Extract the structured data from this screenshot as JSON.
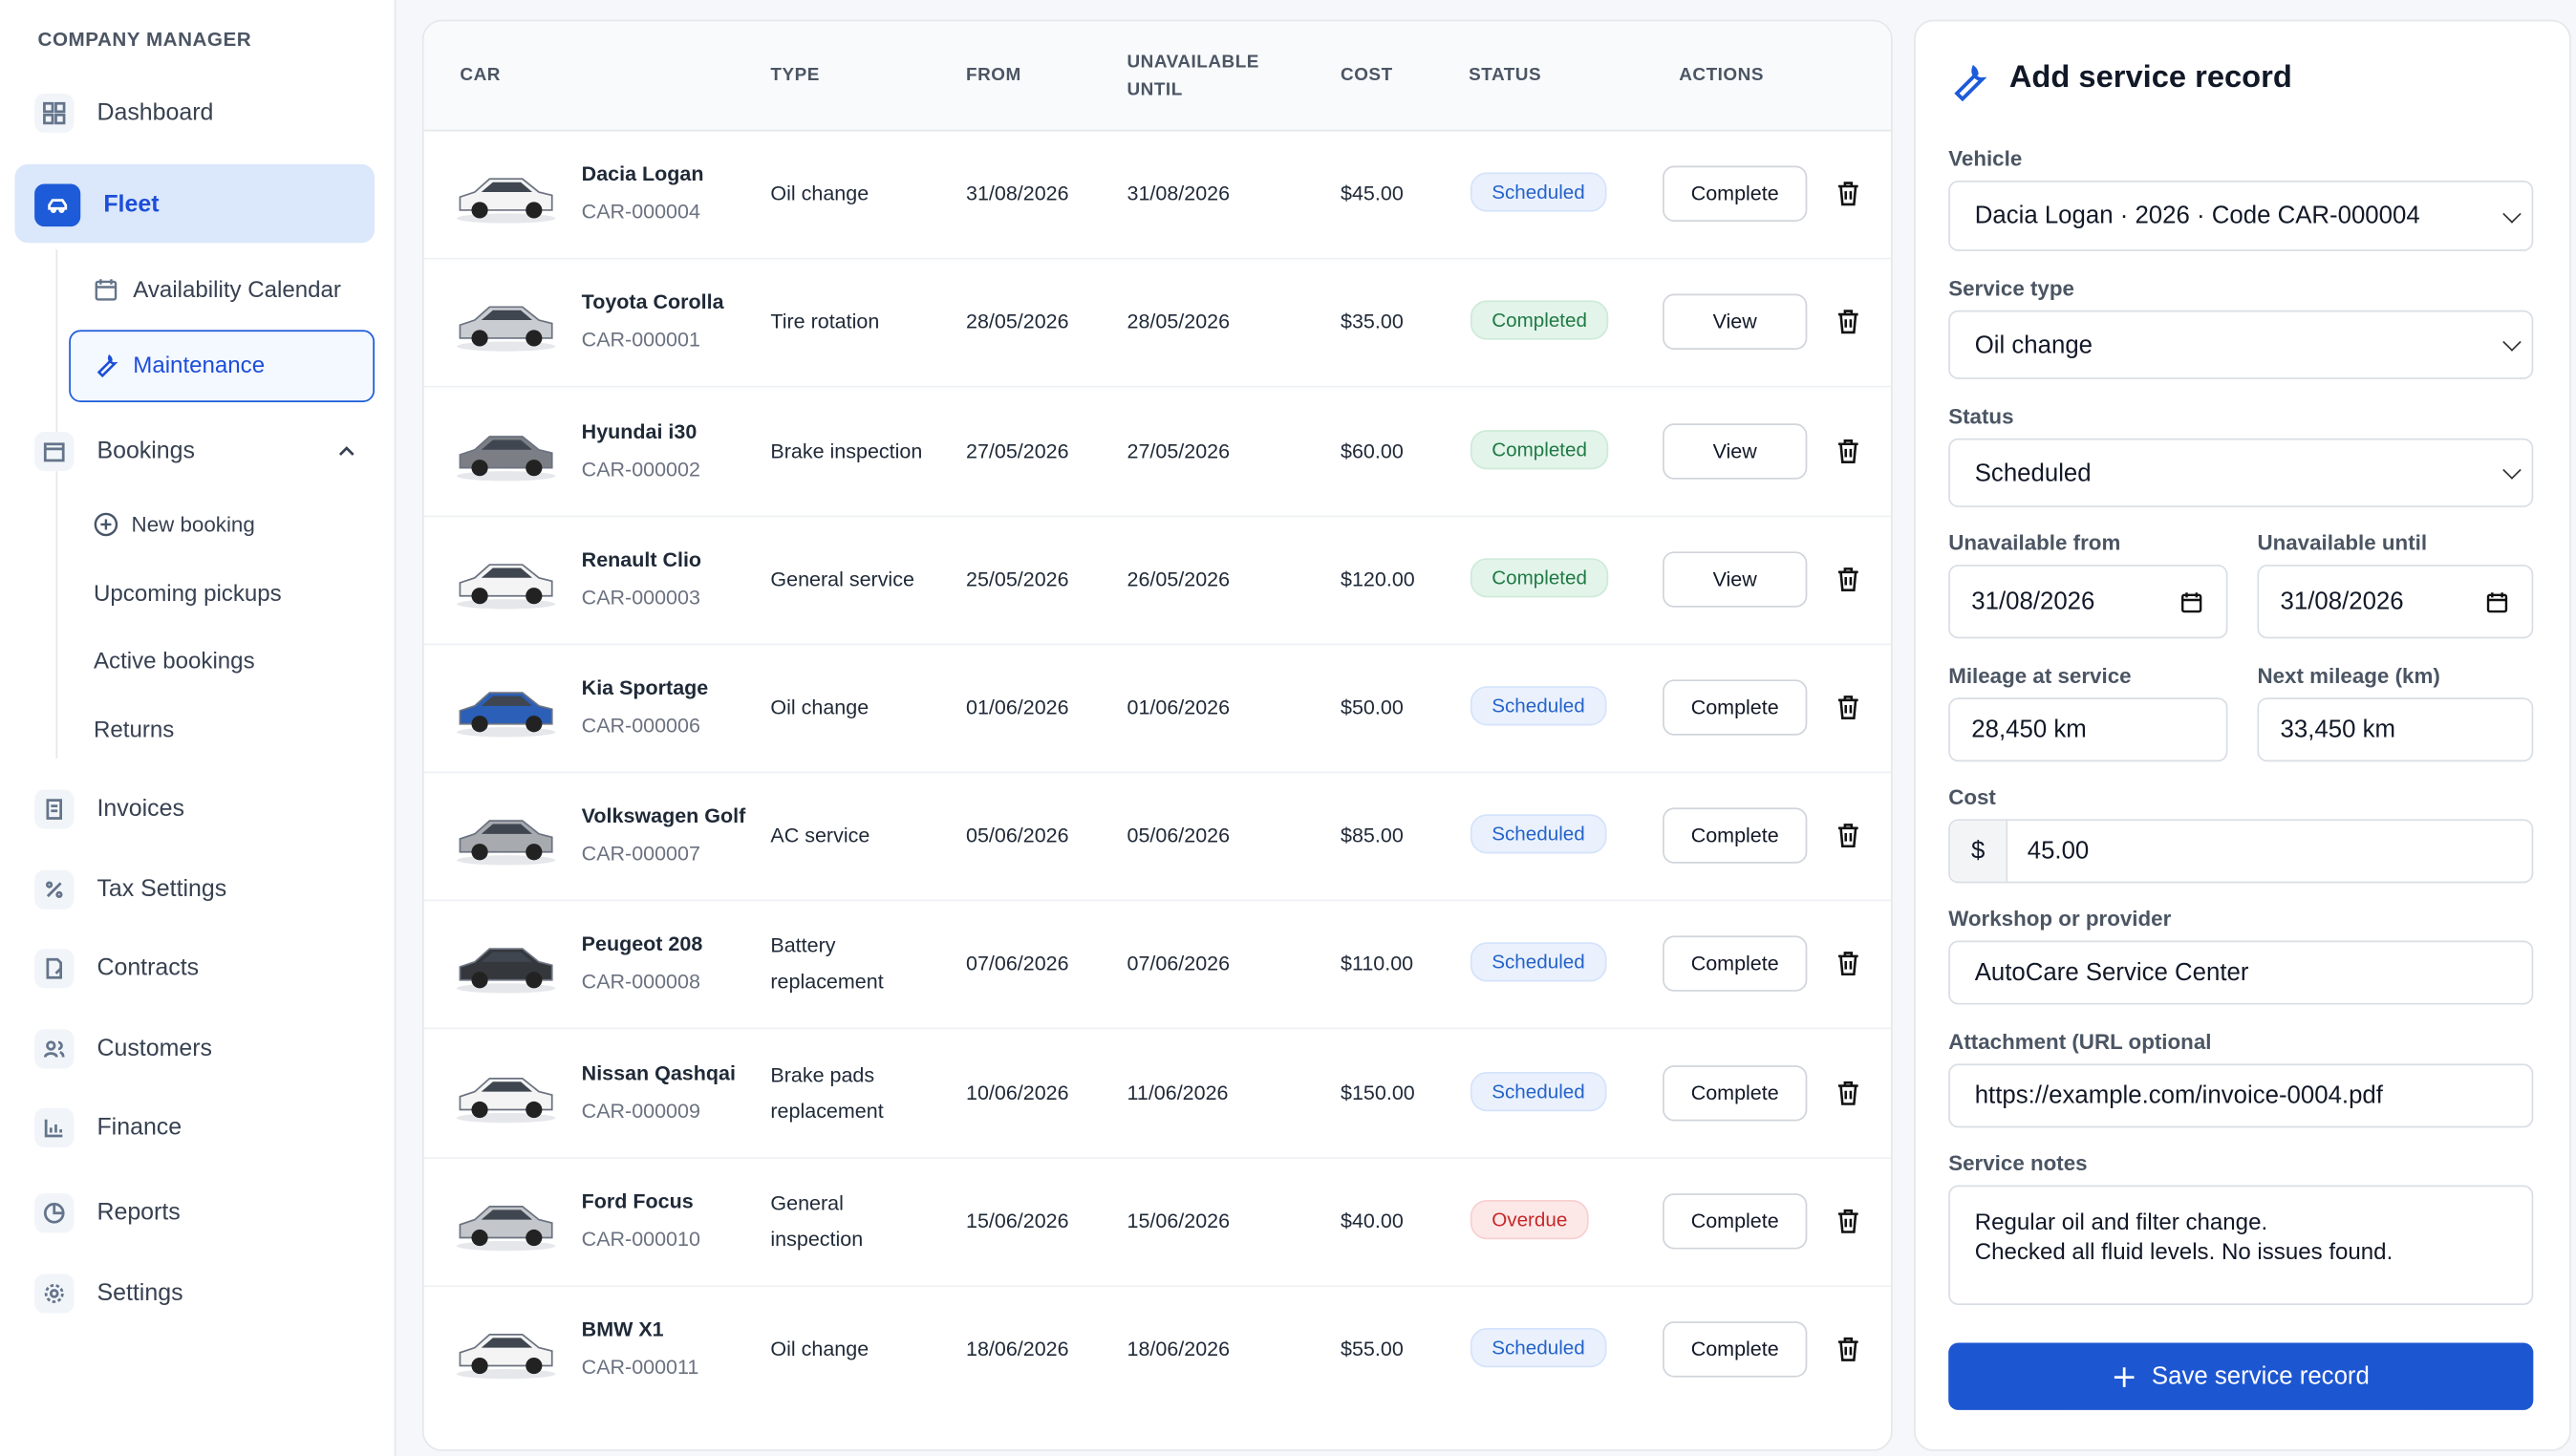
{
  "sidebar": {
    "brand": "COMPANY MANAGER",
    "nav": [
      "Dashboard",
      "Fleet",
      "Availability Calendar",
      "Maintenance",
      "Bookings",
      "New booking",
      "Upcoming pickups",
      "Active bookings",
      "Returns",
      "Invoices",
      "Tax Settings",
      "Contracts",
      "Customers",
      "Finance",
      "Reports",
      "Settings"
    ]
  },
  "table": {
    "headers": [
      "CAR",
      "TYPE",
      "FROM",
      "UNAVAILABLE UNTIL",
      "COST",
      "STATUS",
      "ACTIONS"
    ],
    "rows": [
      {
        "car": "Dacia Logan",
        "code": "CAR-000004",
        "type": "Oil change",
        "from": "31/08/2026",
        "until": "31/08/2026",
        "cost": "$45.00",
        "status": "Scheduled",
        "status_tone": "blue",
        "action": "Complete"
      },
      {
        "car": "Toyota Corolla",
        "code": "CAR-000001",
        "type": "Tire rotation",
        "from": "28/05/2026",
        "until": "28/05/2026",
        "cost": "$35.00",
        "status": "Completed",
        "status_tone": "green",
        "action": "View"
      },
      {
        "car": "Hyundai i30",
        "code": "CAR-000002",
        "type": "Brake inspection",
        "from": "27/05/2026",
        "until": "27/05/2026",
        "cost": "$60.00",
        "status": "Completed",
        "status_tone": "green",
        "action": "View"
      },
      {
        "car": "Renault Clio",
        "code": "CAR-000003",
        "type": "General service",
        "from": "25/05/2026",
        "until": "26/05/2026",
        "cost": "$120.00",
        "status": "Completed",
        "status_tone": "green",
        "action": "View"
      },
      {
        "car": "Kia Sportage",
        "code": "CAR-000006",
        "type": "Oil change",
        "from": "01/06/2026",
        "until": "01/06/2026",
        "cost": "$50.00",
        "status": "Scheduled",
        "status_tone": "blue",
        "action": "Complete"
      },
      {
        "car": "Volkswagen Golf",
        "code": "CAR-000007",
        "type": "AC service",
        "from": "05/06/2026",
        "until": "05/06/2026",
        "cost": "$85.00",
        "status": "Scheduled",
        "status_tone": "blue",
        "action": "Complete"
      },
      {
        "car": "Peugeot 208",
        "code": "CAR-000008",
        "type": "Battery replacement",
        "from": "07/06/2026",
        "until": "07/06/2026",
        "cost": "$110.00",
        "status": "Scheduled",
        "status_tone": "blue",
        "action": "Complete"
      },
      {
        "car": "Nissan Qashqai",
        "code": "CAR-000009",
        "type": "Brake pads replacement",
        "from": "10/06/2026",
        "until": "11/06/2026",
        "cost": "$150.00",
        "status": "Scheduled",
        "status_tone": "blue",
        "action": "Complete"
      },
      {
        "car": "Ford Focus",
        "code": "CAR-000010",
        "type": "General inspection",
        "from": "15/06/2026",
        "until": "15/06/2026",
        "cost": "$40.00",
        "status": "Overdue",
        "status_tone": "red",
        "action": "Complete"
      },
      {
        "car": "BMW X1",
        "code": "CAR-000011",
        "type": "Oil change",
        "from": "18/06/2026",
        "until": "18/06/2026",
        "cost": "$55.00",
        "status": "Scheduled",
        "status_tone": "blue",
        "action": "Complete"
      }
    ]
  },
  "form": {
    "title": "Add service record",
    "vehicle": {
      "label": "Vehicle",
      "value": "Dacia Logan · 2026 · Code CAR-000004"
    },
    "service_type": {
      "label": "Service type",
      "value": "Oil change"
    },
    "status": {
      "label": "Status",
      "value": "Scheduled"
    },
    "unavailable_from": {
      "label": "Unavailable from",
      "value": "31/08/2026"
    },
    "unavailable_until": {
      "label": "Unavailable until",
      "value": "31/08/2026"
    },
    "mileage": {
      "label": "Mileage at service",
      "value": "28,450 km"
    },
    "next_mileage": {
      "label": "Next mileage (km)",
      "value": "33,450 km"
    },
    "cost": {
      "label": "Cost",
      "currency": "$",
      "value": "45.00"
    },
    "workshop": {
      "label": "Workshop or provider",
      "value": "AutoCare Service Center"
    },
    "attachment": {
      "label": "Attachment (URL optional",
      "value": "https://example.com/invoice-0004.pdf"
    },
    "notes": {
      "label": "Service notes",
      "lines": [
        "Regular oil and filter change.",
        "Checked all fluid levels. No issues found."
      ]
    },
    "submit": "Save service record"
  }
}
